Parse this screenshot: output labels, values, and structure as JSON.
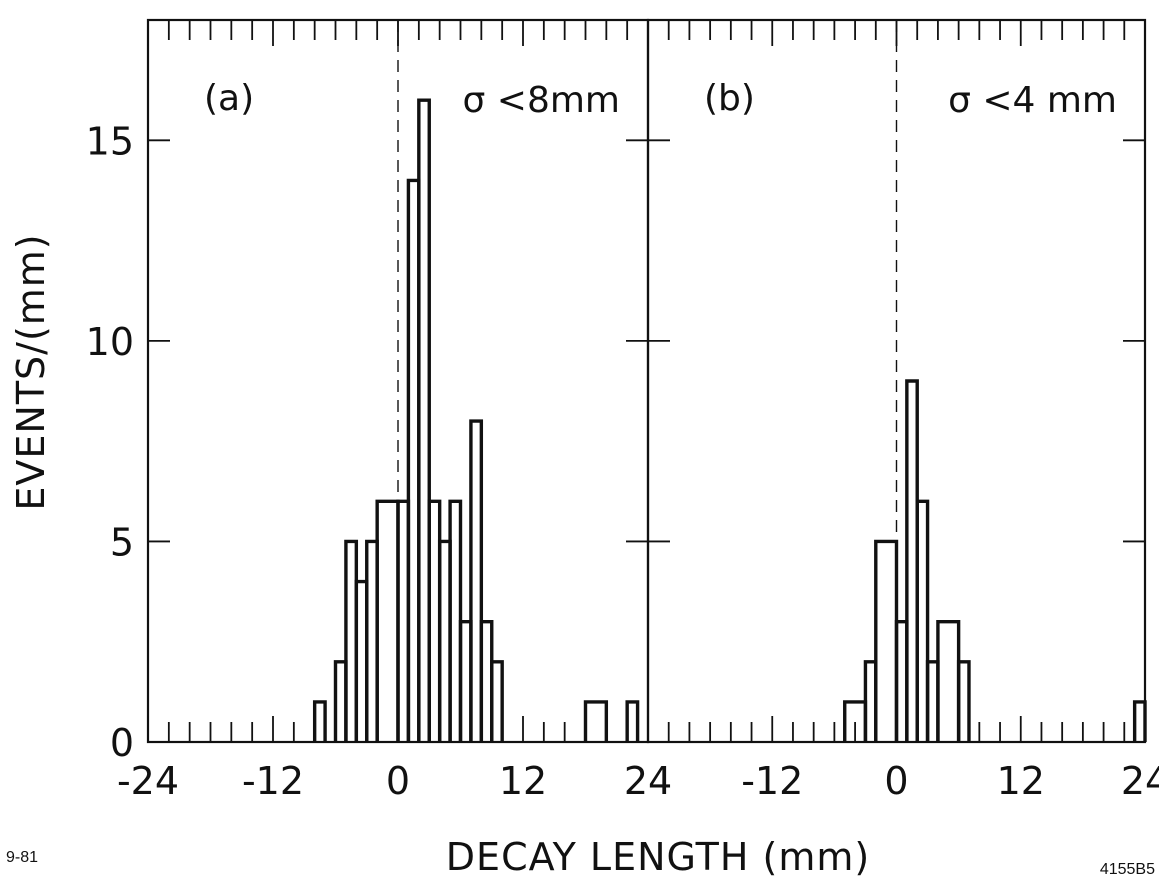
{
  "corner_left": "9-81",
  "corner_right": "4155B5",
  "chart_data": {
    "type": "histogram",
    "xlabel": "DECAY LENGTH (mm)",
    "ylabel": "EVENTS/(mm)",
    "ylim": [
      0,
      18
    ],
    "y_ticks": [
      0,
      5,
      10,
      15
    ],
    "y_tick_labels": [
      "0",
      "5",
      "10",
      "15"
    ],
    "bin_width_mm": 2,
    "panels": [
      {
        "label": "(a)",
        "cut": "σ <8mm",
        "xlim": [
          -24,
          24
        ],
        "x_tick_labels": [
          "-24",
          "-12",
          "0",
          "12",
          "24"
        ],
        "x_tick_values": [
          -24,
          -12,
          0,
          12,
          24
        ],
        "bins": [
          {
            "x0": -8,
            "x1": -7,
            "y": 1
          },
          {
            "x0": -7,
            "x1": -6,
            "y": 0
          },
          {
            "x0": -6,
            "x1": -5,
            "y": 2
          },
          {
            "x0": -5,
            "x1": -4,
            "y": 5
          },
          {
            "x0": -4,
            "x1": -3,
            "y": 4
          },
          {
            "x0": -3,
            "x1": -2,
            "y": 5
          },
          {
            "x0": -2,
            "x1": 0,
            "y": 6
          },
          {
            "x0": 0,
            "x1": 1,
            "y": 6
          },
          {
            "x0": 1,
            "x1": 2,
            "y": 14
          },
          {
            "x0": 2,
            "x1": 3,
            "y": 16
          },
          {
            "x0": 3,
            "x1": 4,
            "y": 6
          },
          {
            "x0": 4,
            "x1": 5,
            "y": 5
          },
          {
            "x0": 5,
            "x1": 6,
            "y": 6
          },
          {
            "x0": 6,
            "x1": 7,
            "y": 3
          },
          {
            "x0": 7,
            "x1": 8,
            "y": 8
          },
          {
            "x0": 8,
            "x1": 9,
            "y": 3
          },
          {
            "x0": 9,
            "x1": 10,
            "y": 2
          },
          {
            "x0": 18,
            "x1": 20,
            "y": 1
          },
          {
            "x0": 22,
            "x1": 23,
            "y": 1
          }
        ]
      },
      {
        "label": "(b)",
        "cut": "σ <4 mm",
        "xlim": [
          -24,
          24
        ],
        "x_tick_labels": [
          "-12",
          "0",
          "12",
          "24"
        ],
        "x_tick_values": [
          -12,
          0,
          12,
          24
        ],
        "bins": [
          {
            "x0": -5,
            "x1": -3,
            "y": 1
          },
          {
            "x0": -3,
            "x1": -2,
            "y": 2
          },
          {
            "x0": -2,
            "x1": 0,
            "y": 5
          },
          {
            "x0": 0,
            "x1": 1,
            "y": 3
          },
          {
            "x0": 1,
            "x1": 2,
            "y": 9
          },
          {
            "x0": 2,
            "x1": 3,
            "y": 6
          },
          {
            "x0": 3,
            "x1": 4,
            "y": 2
          },
          {
            "x0": 4,
            "x1": 6,
            "y": 3
          },
          {
            "x0": 6,
            "x1": 7,
            "y": 2
          },
          {
            "x0": 23,
            "x1": 24,
            "y": 1
          }
        ]
      }
    ]
  }
}
